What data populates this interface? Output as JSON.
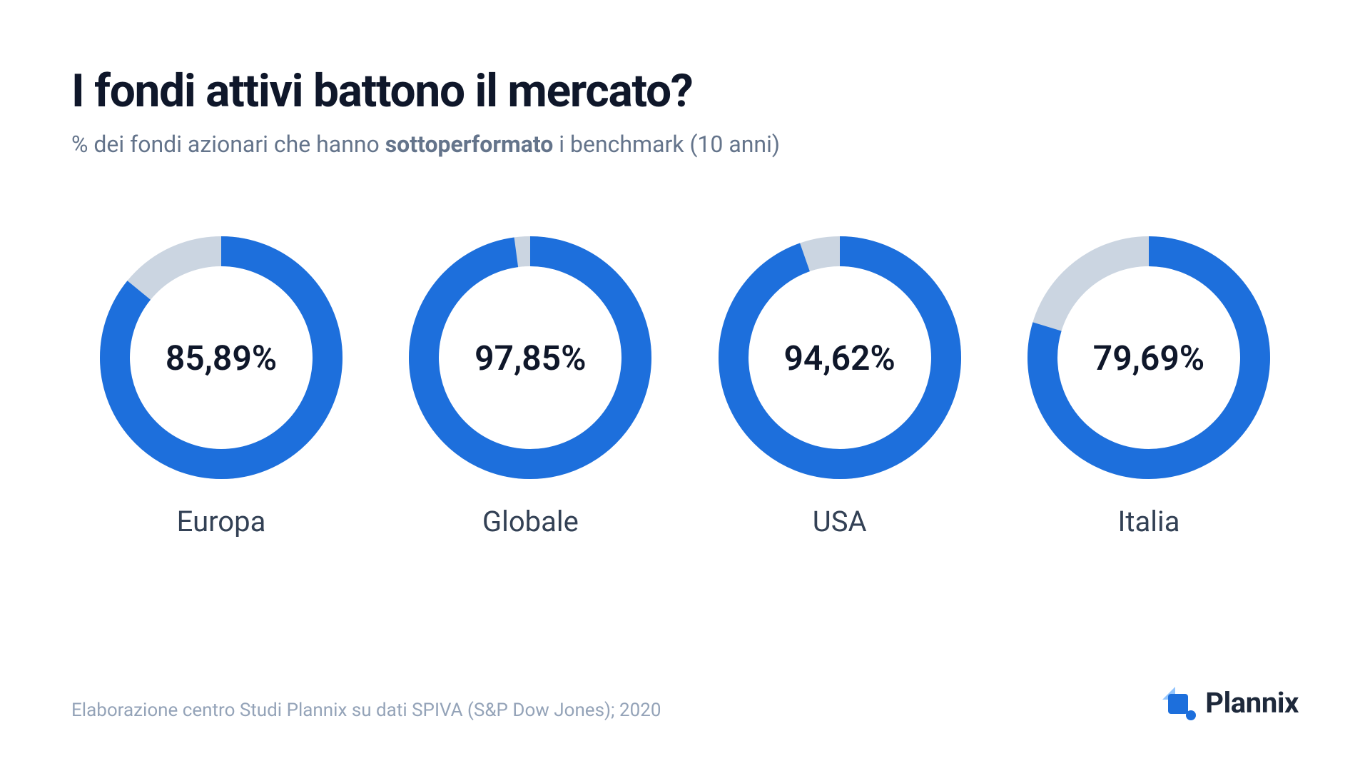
{
  "header": {
    "title": "I fondi attivi battono il mercato?",
    "subtitle_pre": "% dei fondi azionari che hanno ",
    "subtitle_bold": "sottoperformato",
    "subtitle_post": " i benchmark (10 anni)"
  },
  "chart": {
    "type": "donut-multiples",
    "ring_thickness": 42,
    "diameter": 340,
    "fill_color": "#1d6fdc",
    "track_color": "#cbd5e1",
    "background_color": "#ffffff",
    "center_fontsize": 48,
    "center_fontweight": 600,
    "center_color": "#0f172a",
    "label_fontsize": 40,
    "label_color": "#334155",
    "donuts": [
      {
        "label": "Europa",
        "value": 85.89,
        "display": "85,89%"
      },
      {
        "label": "Globale",
        "value": 97.85,
        "display": "97,85%"
      },
      {
        "label": "USA",
        "value": 94.62,
        "display": "94,62%"
      },
      {
        "label": "Italia",
        "value": 79.69,
        "display": "79,69%"
      }
    ]
  },
  "footer": {
    "source": "Elaborazione centro Studi Plannix su dati SPIVA (S&P Dow Jones); 2020",
    "logo_text": "Plannix",
    "logo_accent_light": "#93c5fd",
    "logo_accent_dark": "#1d6fdc"
  },
  "typography": {
    "title_fontsize": 64,
    "title_fontweight": 700,
    "title_color": "#0f172a",
    "subtitle_fontsize": 32,
    "subtitle_color": "#64748b",
    "source_fontsize": 26,
    "source_color": "#94a3b8",
    "logo_fontsize": 40,
    "logo_color": "#1e293b"
  }
}
